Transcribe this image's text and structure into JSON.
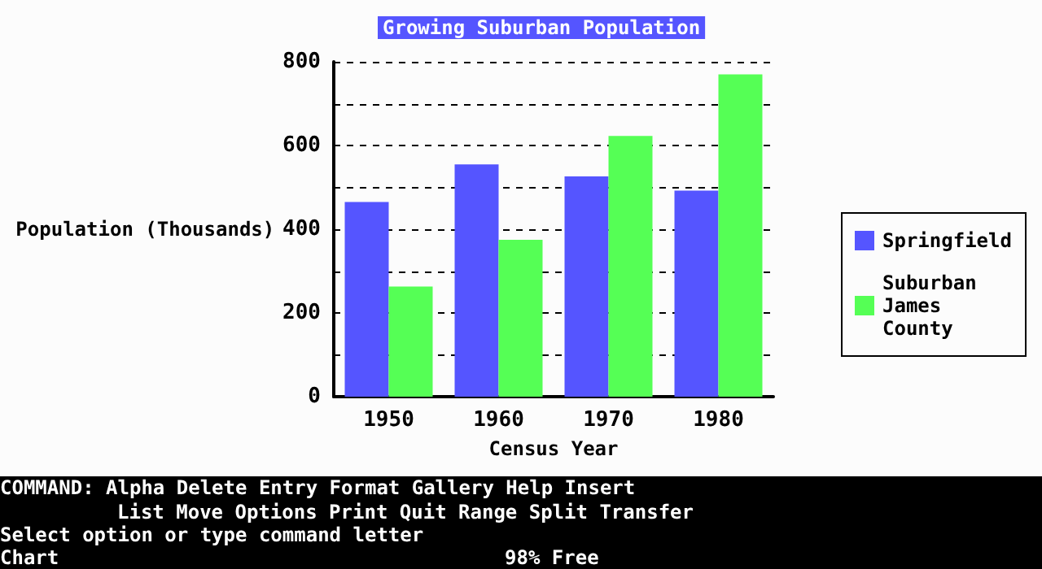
{
  "chart_data": {
    "type": "bar",
    "title": "Growing Suburban Population",
    "xlabel": "Census Year",
    "ylabel": "Population (Thousands)",
    "categories": [
      "1950",
      "1960",
      "1970",
      "1980"
    ],
    "series": [
      {
        "name": "Springfield",
        "color": "#5555ff",
        "values": [
          465,
          555,
          526,
          492
        ]
      },
      {
        "name": "Suburban James County",
        "color": "#55ff55",
        "values": [
          263,
          375,
          623,
          770
        ]
      }
    ],
    "ylim": [
      0,
      800
    ],
    "yticks": [
      0,
      {
        "value": 100,
        "label": null
      },
      200,
      {
        "value": 300,
        "label": null
      },
      400,
      {
        "value": 500,
        "label": null
      },
      600,
      {
        "value": 700,
        "label": null
      },
      800
    ],
    "grid": "y",
    "legend": "right",
    "annotations": [
      "COMMAND: Alpha Delete Entry Format Gallery Help Insert",
      "List Move Options Print Quit Range Split Transfer",
      "Select option or type command letter",
      "Chart",
      "98% Free"
    ]
  }
}
